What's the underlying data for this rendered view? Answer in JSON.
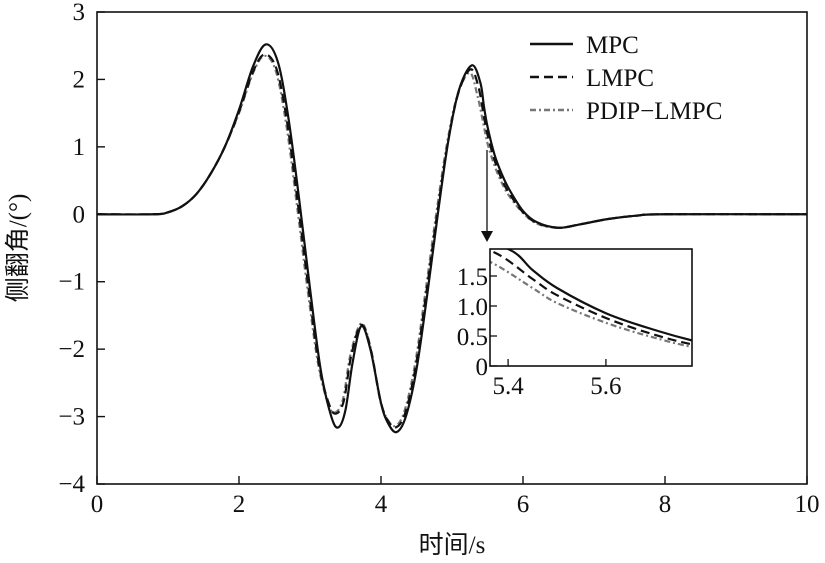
{
  "chart_data": {
    "type": "line",
    "xlabel": "时间/s",
    "ylabel": "侧翻角/(°)",
    "xlim": [
      0,
      10
    ],
    "ylim": [
      -4,
      3
    ],
    "xticks": [
      0,
      2,
      4,
      6,
      8,
      10
    ],
    "yticks": [
      -4,
      -3,
      -2,
      -1,
      0,
      1,
      2,
      3
    ],
    "legend_position": "top-right",
    "series": [
      {
        "name": "MPC",
        "style": "solid",
        "color": "#111111",
        "x": [
          0,
          0.8,
          1.0,
          1.2,
          1.4,
          1.6,
          1.8,
          2.0,
          2.2,
          2.38,
          2.55,
          2.7,
          2.85,
          3.0,
          3.15,
          3.3,
          3.4,
          3.5,
          3.6,
          3.72,
          3.85,
          4.0,
          4.1,
          4.22,
          4.35,
          4.5,
          4.65,
          4.8,
          4.95,
          5.1,
          5.28,
          5.4,
          5.45,
          5.5,
          5.6,
          5.7,
          5.8,
          6.0,
          6.2,
          6.5,
          6.8,
          7.2,
          7.6,
          8,
          10
        ],
        "y": [
          0,
          0,
          0.03,
          0.12,
          0.3,
          0.6,
          1.0,
          1.55,
          2.2,
          2.52,
          2.25,
          1.4,
          0.2,
          -1.1,
          -2.3,
          -3.0,
          -3.16,
          -2.9,
          -2.2,
          -1.66,
          -2.0,
          -2.8,
          -3.1,
          -3.23,
          -3.0,
          -2.3,
          -1.2,
          0.0,
          1.1,
          1.85,
          2.21,
          1.95,
          1.6,
          1.3,
          0.88,
          0.6,
          0.38,
          0.05,
          -0.12,
          -0.2,
          -0.15,
          -0.07,
          -0.02,
          0,
          0
        ]
      },
      {
        "name": "LMPC",
        "style": "dashed",
        "color": "#111111",
        "x": [
          0,
          0.8,
          1.0,
          1.2,
          1.4,
          1.6,
          1.8,
          2.0,
          2.2,
          2.36,
          2.53,
          2.68,
          2.83,
          2.98,
          3.13,
          3.28,
          3.38,
          3.48,
          3.58,
          3.72,
          3.85,
          3.99,
          4.09,
          4.21,
          4.34,
          4.49,
          4.64,
          4.79,
          4.94,
          5.09,
          5.26,
          5.37,
          5.45,
          5.5,
          5.6,
          5.7,
          5.8,
          6.0,
          6.2,
          6.5,
          6.8,
          7.2,
          7.6,
          8,
          10
        ],
        "y": [
          0,
          0,
          0.03,
          0.12,
          0.3,
          0.6,
          1.0,
          1.52,
          2.12,
          2.37,
          2.15,
          1.35,
          0.15,
          -1.1,
          -2.25,
          -2.85,
          -2.95,
          -2.75,
          -2.1,
          -1.64,
          -1.98,
          -2.75,
          -3.05,
          -3.16,
          -2.95,
          -2.25,
          -1.15,
          0.0,
          1.05,
          1.8,
          2.15,
          1.9,
          1.45,
          1.18,
          0.8,
          0.52,
          0.32,
          0.03,
          -0.13,
          -0.2,
          -0.15,
          -0.07,
          -0.02,
          0,
          0
        ]
      },
      {
        "name": "PDIP−LMPC",
        "style": "dashdot",
        "color": "#777777",
        "x": [
          0,
          0.8,
          1.0,
          1.2,
          1.4,
          1.6,
          1.8,
          2.0,
          2.2,
          2.36,
          2.52,
          2.67,
          2.82,
          2.97,
          3.12,
          3.27,
          3.37,
          3.47,
          3.57,
          3.72,
          3.85,
          3.98,
          4.08,
          4.2,
          4.33,
          4.48,
          4.63,
          4.78,
          4.93,
          5.08,
          5.25,
          5.36,
          5.45,
          5.5,
          5.6,
          5.7,
          5.8,
          6.0,
          6.2,
          6.5,
          6.8,
          7.2,
          7.6,
          8,
          10
        ],
        "y": [
          0,
          0,
          0.03,
          0.12,
          0.3,
          0.6,
          1.0,
          1.5,
          2.1,
          2.35,
          2.12,
          1.3,
          0.1,
          -1.15,
          -2.25,
          -2.85,
          -2.93,
          -2.72,
          -2.08,
          -1.62,
          -1.96,
          -2.72,
          -3.02,
          -3.14,
          -2.92,
          -2.22,
          -1.12,
          0.02,
          1.05,
          1.78,
          2.1,
          1.75,
          1.3,
          1.05,
          0.72,
          0.47,
          0.28,
          0.02,
          -0.14,
          -0.2,
          -0.15,
          -0.07,
          -0.02,
          0,
          0
        ]
      }
    ],
    "inset": {
      "xlim": [
        5.363,
        5.776
      ],
      "ylim": [
        0,
        1.95
      ],
      "xticks": [
        5.4,
        5.6
      ],
      "ytick_labels": [
        "0",
        "0.5",
        "1.0",
        "1.5"
      ],
      "yticks": [
        0,
        0.5,
        1.0,
        1.5
      ],
      "xtick_labels": [
        "5.4",
        "5.6"
      ]
    }
  }
}
